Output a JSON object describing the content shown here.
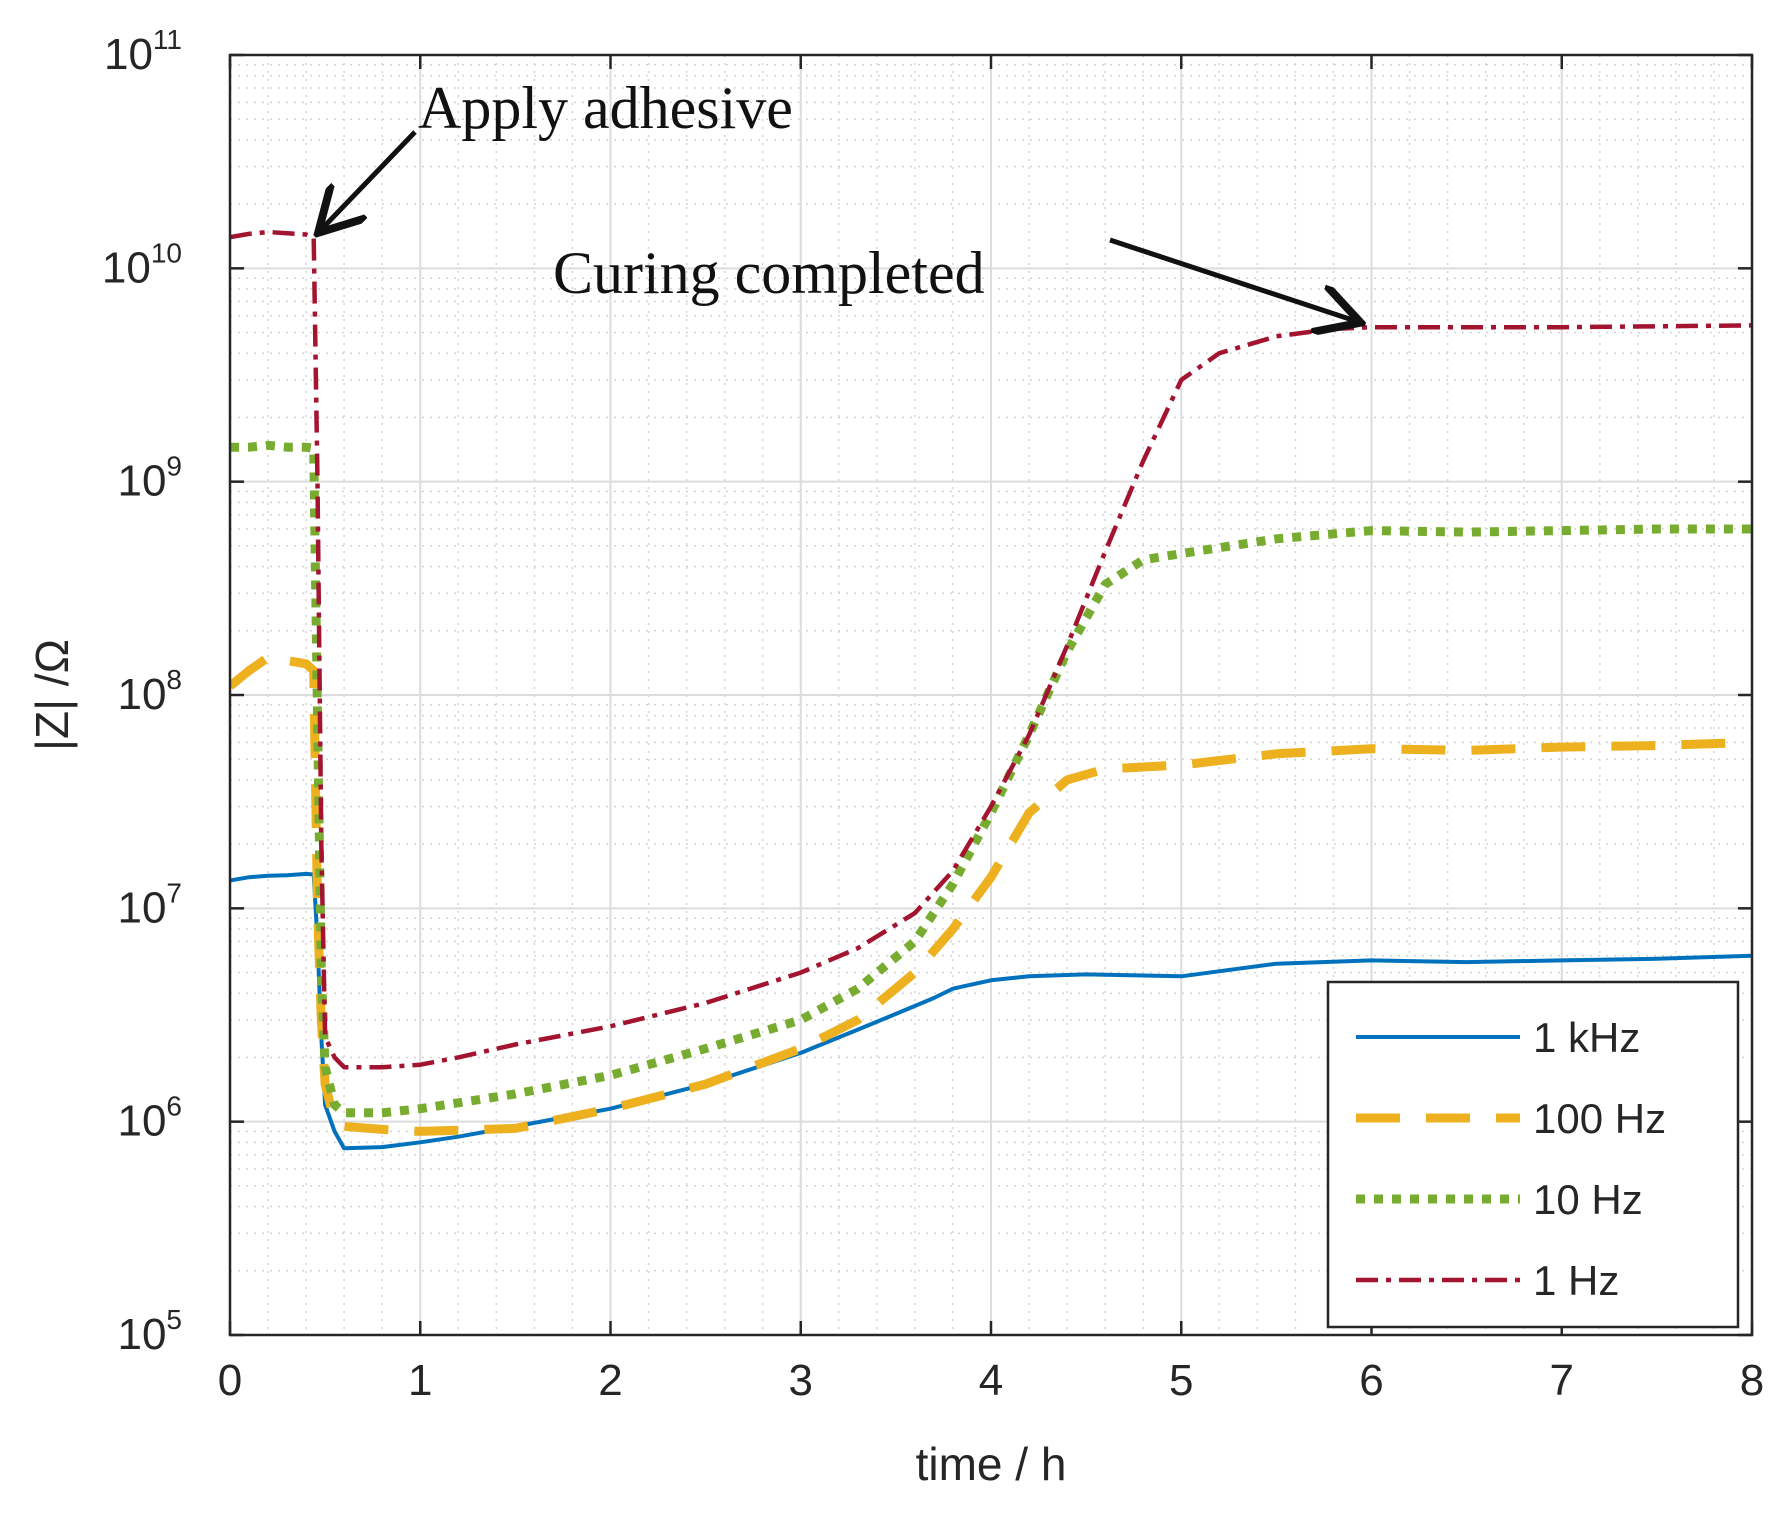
{
  "chart_data": {
    "type": "line",
    "xlabel": "time / h",
    "ylabel": "|Z| /Ω",
    "xlim": [
      0,
      8
    ],
    "ylim": [
      100000,
      100000000000
    ],
    "yscale": "log",
    "grid": true,
    "minor_grid": true,
    "xticks": [
      "0",
      "1",
      "2",
      "3",
      "4",
      "5",
      "6",
      "7",
      "8"
    ],
    "yticks": [
      {
        "base": "10",
        "exp": "5"
      },
      {
        "base": "10",
        "exp": "6"
      },
      {
        "base": "10",
        "exp": "7"
      },
      {
        "base": "10",
        "exp": "8"
      },
      {
        "base": "10",
        "exp": "9"
      },
      {
        "base": "10",
        "exp": "10"
      },
      {
        "base": "10",
        "exp": "11"
      }
    ],
    "legend_position": "bottom-right",
    "annotations": [
      {
        "text": "Apply adhesive",
        "points_to": [
          0.45,
          14000000000
        ]
      },
      {
        "text": "Curing completed",
        "points_to": [
          5.95,
          5300000000
        ]
      }
    ],
    "series": [
      {
        "name": "1 kHz",
        "color": "#0072BD",
        "style": "solid",
        "x": [
          0,
          0.1,
          0.2,
          0.3,
          0.4,
          0.44,
          0.46,
          0.48,
          0.5,
          0.55,
          0.6,
          0.8,
          1.0,
          1.2,
          1.5,
          2.0,
          2.5,
          3.0,
          3.3,
          3.5,
          3.7,
          3.8,
          3.9,
          4.0,
          4.1,
          4.2,
          4.5,
          5.0,
          5.5,
          6.0,
          6.5,
          7.0,
          7.5,
          8.0
        ],
        "y": [
          13500000,
          14000000,
          14200000,
          14300000,
          14500000,
          14400000,
          7000000,
          2500000,
          1200000,
          900000,
          750000,
          760000,
          800000,
          850000,
          950000,
          1150000,
          1500000,
          2100000,
          2700000,
          3200000,
          3800000,
          4200000,
          4400000,
          4600000,
          4700000,
          4800000,
          4900000,
          4800000,
          5500000,
          5700000,
          5600000,
          5700000,
          5800000,
          6000000
        ]
      },
      {
        "name": "100 Hz",
        "color": "#EDB120",
        "style": "dashed",
        "x": [
          0,
          0.1,
          0.2,
          0.3,
          0.4,
          0.44,
          0.46,
          0.48,
          0.5,
          0.55,
          0.6,
          0.8,
          1.0,
          1.5,
          2.0,
          2.5,
          3.0,
          3.3,
          3.6,
          3.8,
          4.0,
          4.2,
          4.4,
          4.6,
          5.0,
          5.5,
          6.0,
          6.5,
          7.0,
          7.5,
          8.0
        ],
        "y": [
          110000000,
          130000000,
          150000000,
          145000000,
          140000000,
          130000000,
          10000000,
          3000000,
          1500000,
          1000000,
          950000,
          920000,
          900000,
          930000,
          1150000,
          1500000,
          2200000,
          3000000,
          5000000,
          8000000,
          14000000,
          28000000,
          40000000,
          45000000,
          47000000,
          53000000,
          56000000,
          55000000,
          57000000,
          58000000,
          60000000
        ]
      },
      {
        "name": "10 Hz",
        "color": "#77AC30",
        "style": "dotted",
        "x": [
          0,
          0.1,
          0.2,
          0.3,
          0.4,
          0.44,
          0.46,
          0.48,
          0.5,
          0.55,
          0.6,
          0.8,
          1.0,
          1.5,
          2.0,
          2.5,
          3.0,
          3.3,
          3.6,
          3.8,
          4.0,
          4.2,
          4.4,
          4.6,
          4.8,
          5.0,
          5.5,
          6.0,
          6.5,
          7.0,
          7.5,
          8.0
        ],
        "y": [
          1450000000,
          1450000000,
          1480000000,
          1450000000,
          1450000000,
          1430000000,
          80000000,
          5000000,
          1800000,
          1200000,
          1100000,
          1100000,
          1150000,
          1350000,
          1650000,
          2200000,
          3000000,
          4200000,
          7000000,
          13000000,
          28000000,
          65000000,
          160000000,
          330000000,
          430000000,
          460000000,
          540000000,
          590000000,
          580000000,
          590000000,
          600000000,
          600000000
        ]
      },
      {
        "name": "1 Hz",
        "color": "#A2142F",
        "style": "dashdot",
        "x": [
          0,
          0.1,
          0.2,
          0.3,
          0.4,
          0.44,
          0.46,
          0.48,
          0.5,
          0.55,
          0.6,
          0.8,
          1.0,
          1.2,
          1.5,
          2.0,
          2.5,
          3.0,
          3.3,
          3.6,
          3.8,
          4.0,
          4.2,
          4.4,
          4.6,
          4.8,
          5.0,
          5.2,
          5.5,
          5.8,
          6.0,
          7.0,
          8.0
        ],
        "y": [
          14000000000,
          14500000000,
          14800000000,
          14600000000,
          14400000000,
          14000000000,
          1000000000,
          20000000,
          2500000,
          2000000,
          1800000,
          1800000,
          1850000,
          2000000,
          2300000,
          2800000,
          3600000,
          5000000,
          6500000,
          9500000,
          15000000,
          30000000,
          65000000,
          170000000,
          470000000,
          1250000000,
          3000000000,
          4000000000,
          4800000000,
          5200000000,
          5300000000,
          5300000000,
          5400000000
        ]
      }
    ]
  }
}
